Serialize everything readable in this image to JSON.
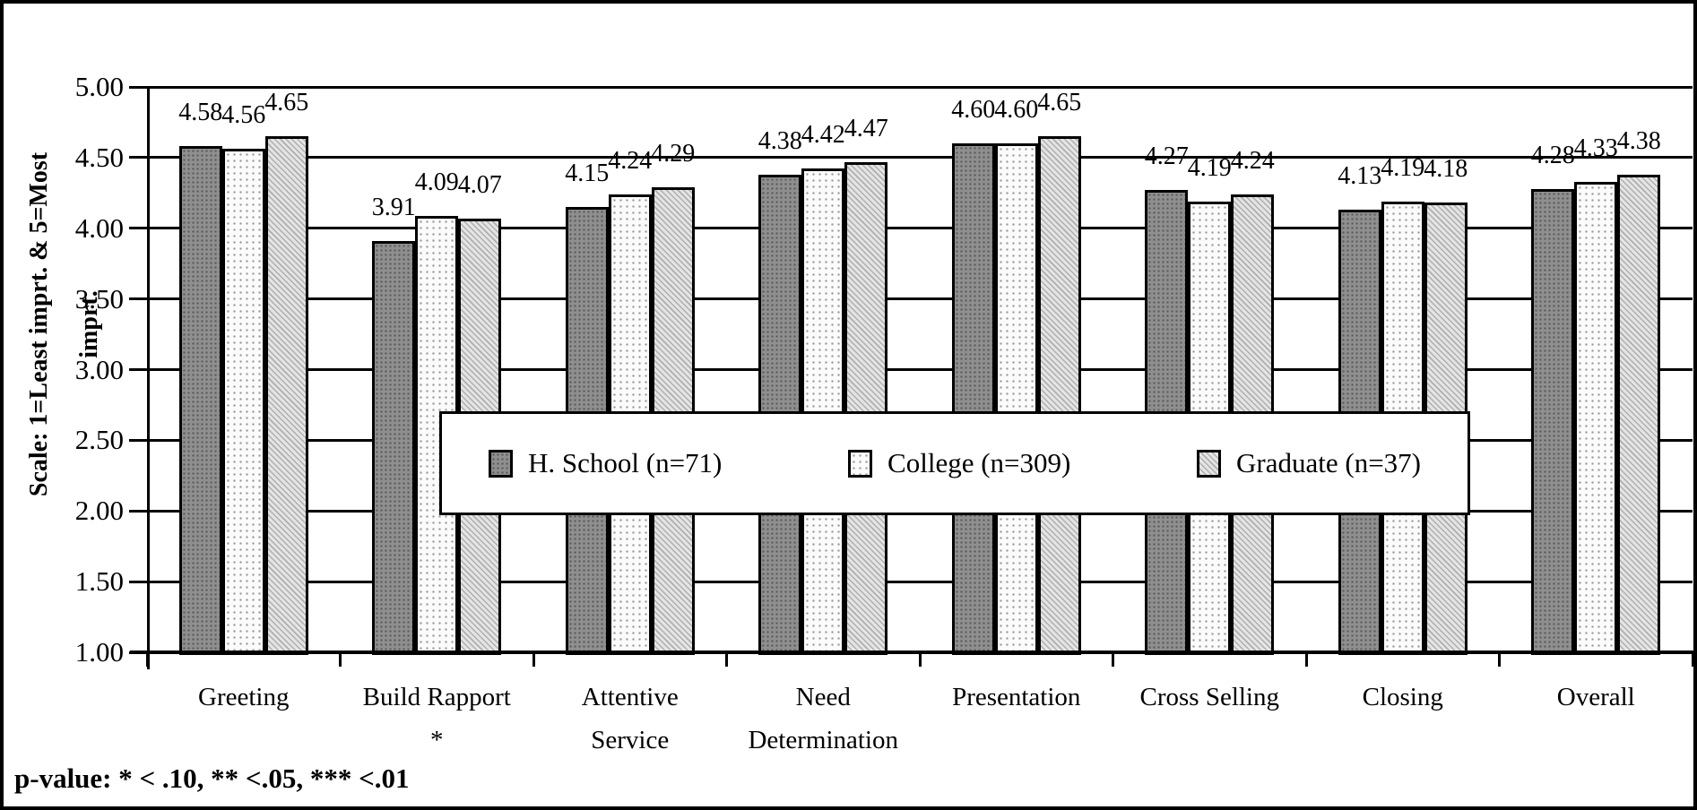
{
  "y_axis": {
    "line1": "Scale: 1=Least imprt. & 5=Most",
    "line2": "imprt."
  },
  "footer": {
    "text": "p-value: * < .10, ** <.05, *** <.01"
  },
  "chart_data": {
    "type": "bar",
    "title": "",
    "xlabel": "",
    "ylabel": "Scale: 1=Least imprt. & 5=Most imprt.",
    "ylim": [
      1.0,
      5.0
    ],
    "ytick_step": 0.5,
    "yticks": [
      "5.00",
      "4.50",
      "4.00",
      "3.50",
      "3.00",
      "2.50",
      "2.00",
      "1.50",
      "1.00"
    ],
    "grid": true,
    "legend_position": "center-overlay",
    "value_labels": true,
    "categories": [
      "Greeting",
      "Build Rapport\n*",
      "Attentive\nService",
      "Need\nDetermination",
      "Presentation",
      "Cross Selling",
      "Closing",
      "Overall"
    ],
    "series": [
      {
        "name": "H. School (n=71)",
        "swatch": "dark-gray-dotted",
        "values": [
          4.58,
          3.91,
          4.15,
          4.38,
          4.6,
          4.27,
          4.13,
          4.28
        ]
      },
      {
        "name": "College (n=309)",
        "swatch": "white-dotted",
        "values": [
          4.56,
          4.09,
          4.24,
          4.42,
          4.6,
          4.19,
          4.19,
          4.33
        ]
      },
      {
        "name": "Graduate (n=37)",
        "swatch": "light-gray-hatch",
        "values": [
          4.65,
          4.07,
          4.29,
          4.47,
          4.65,
          4.24,
          4.18,
          4.38
        ]
      }
    ],
    "footnote": "p-value: * < .10, ** <.05, *** <.01",
    "colors": {
      "axis": "#000000",
      "background": "#ffffff"
    }
  }
}
